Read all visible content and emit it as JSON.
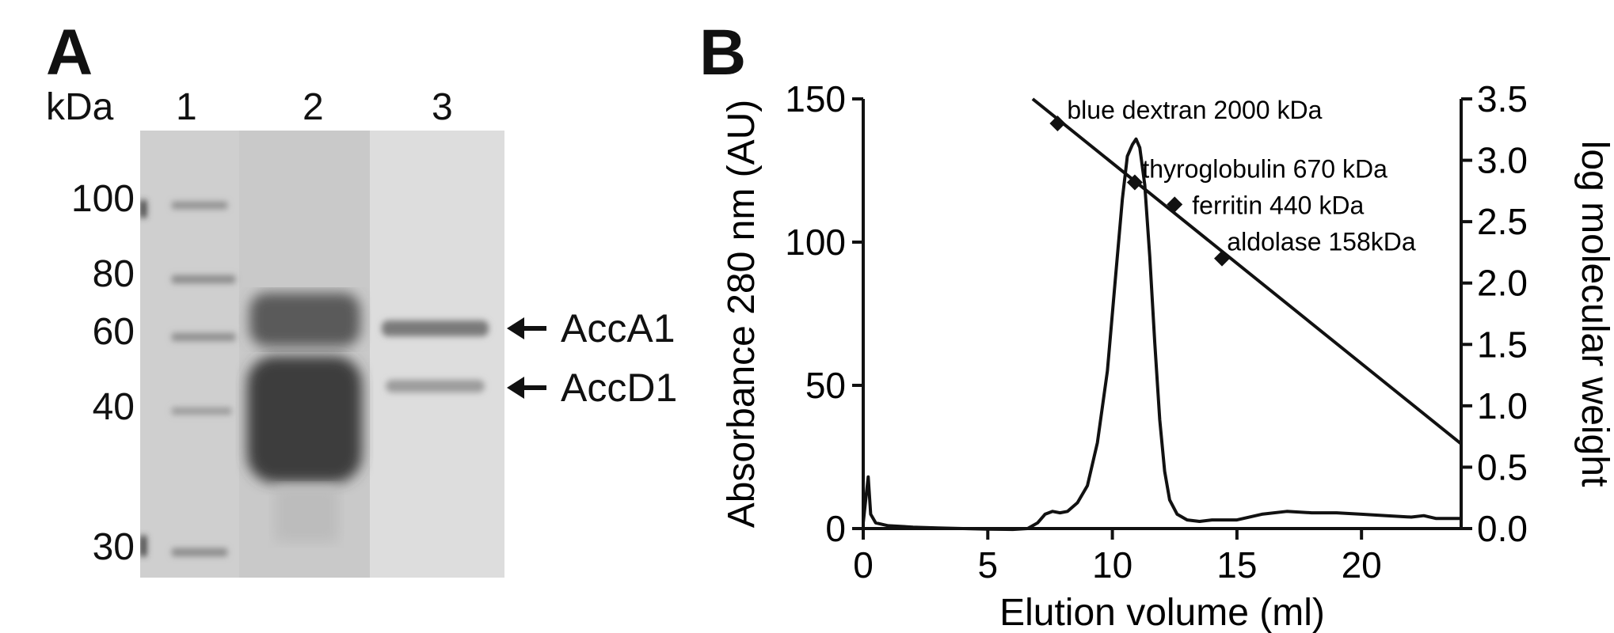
{
  "panel_a": {
    "label": "A",
    "kda_label": "kDa",
    "lanes": [
      "1",
      "2",
      "3"
    ],
    "markers": [
      "100",
      "80",
      "60",
      "40",
      "30"
    ],
    "arrows": [
      "AccA1",
      "AccD1"
    ]
  },
  "panel_b": {
    "label": "B"
  },
  "chart_data": {
    "type": "line",
    "xlabel": "Elution volume (ml)",
    "ylabel": "Absorbance 280 nm (AU)",
    "y2label": "log molecular weight",
    "xlim": [
      0,
      24
    ],
    "ylim": [
      0,
      150
    ],
    "y2lim": [
      0.0,
      3.5
    ],
    "xticks": [
      "0",
      "5",
      "10",
      "15",
      "20"
    ],
    "yticks": [
      "0",
      "50",
      "100",
      "150"
    ],
    "y2ticks": [
      "0.0",
      "0.5",
      "1.0",
      "1.5",
      "2.0",
      "2.5",
      "3.0",
      "3.5"
    ],
    "grid": false,
    "absorbance_trace": {
      "x": [
        0,
        0.1,
        0.2,
        0.3,
        0.5,
        1,
        2,
        3,
        4,
        5,
        6,
        6.6,
        7,
        7.3,
        7.6,
        7.9,
        8.2,
        8.6,
        9.0,
        9.4,
        9.8,
        10.1,
        10.4,
        10.6,
        10.8,
        10.95,
        11.1,
        11.3,
        11.5,
        11.7,
        11.9,
        12.1,
        12.3,
        12.6,
        13,
        13.5,
        14,
        15,
        16,
        17,
        18,
        19,
        20,
        21,
        22,
        22.5,
        23,
        24
      ],
      "y": [
        2,
        10,
        18,
        5,
        2,
        1,
        0.5,
        0.2,
        0,
        -0.2,
        -0.3,
        0,
        2,
        5,
        6,
        5.5,
        6,
        9,
        15,
        30,
        55,
        85,
        115,
        130,
        134,
        136,
        133,
        120,
        95,
        65,
        38,
        20,
        10,
        5,
        3,
        2.5,
        3,
        3,
        5,
        6,
        5.5,
        5.5,
        5,
        4.5,
        4,
        4.5,
        3.5,
        3.5
      ]
    },
    "standards": [
      {
        "name": "blue dextran 2000 kDa",
        "x": 7.8,
        "y2": 3.3
      },
      {
        "name": "thyroglobulin 670 kDa",
        "x": 10.9,
        "y2": 2.82
      },
      {
        "name": "ferritin 440 kDa",
        "x": 12.5,
        "y2": 2.64
      },
      {
        "name": "aldolase 158kDa",
        "x": 14.4,
        "y2": 2.2
      }
    ],
    "calibration_line": {
      "x": [
        6.8,
        24
      ],
      "y2": [
        3.5,
        0.69
      ]
    }
  }
}
